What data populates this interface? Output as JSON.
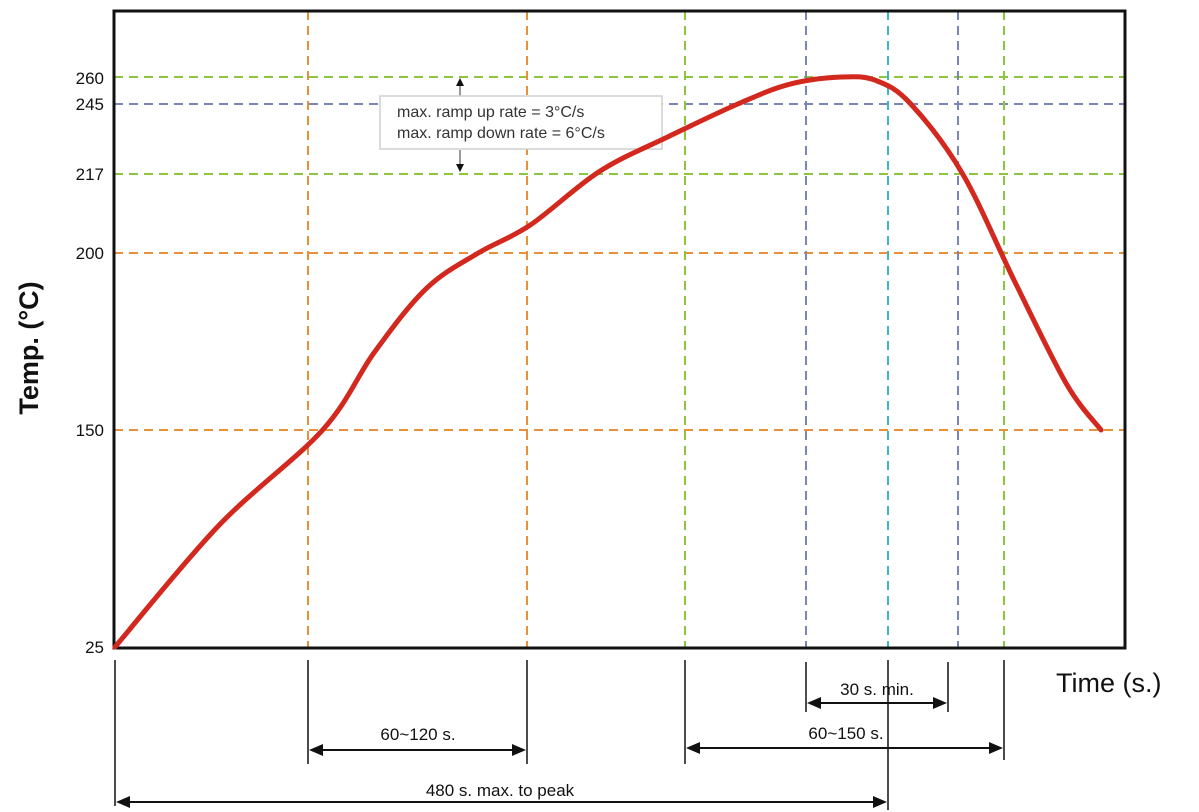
{
  "chart_data": {
    "type": "line",
    "xlabel": "Time (s.)",
    "ylabel": "Temp. (°C)",
    "y_ticks": [
      25,
      150,
      200,
      217,
      245,
      260
    ],
    "series": [
      {
        "color": "#d2281e",
        "points": [
          [
            0,
            25
          ],
          [
            60,
            95
          ],
          [
            120,
            150
          ],
          [
            150,
            172
          ],
          [
            180,
            190
          ],
          [
            210,
            200
          ],
          [
            240,
            206
          ],
          [
            280,
            218
          ],
          [
            320,
            232
          ],
          [
            360,
            245
          ],
          [
            390,
            256
          ],
          [
            420,
            260
          ],
          [
            440,
            258
          ],
          [
            460,
            245
          ],
          [
            490,
            217
          ],
          [
            520,
            192
          ],
          [
            550,
            163
          ],
          [
            570,
            150
          ]
        ]
      }
    ],
    "annotation": {
      "line1": "max. ramp up rate = 3°C/s",
      "line2": "max. ramp down rate = 6°C/s"
    },
    "spans": [
      {
        "label": "30 s. min."
      },
      {
        "label": "60~120 s."
      },
      {
        "label": "60~150 s."
      },
      {
        "label": "480 s. max. to peak"
      }
    ],
    "colors": {
      "curve": "#d2281e",
      "orange_grid": "#e8913a",
      "green_grid": "#8cc63f",
      "blue_grid": "#7b86b8",
      "cyan_grid": "#3fb6c8"
    }
  }
}
